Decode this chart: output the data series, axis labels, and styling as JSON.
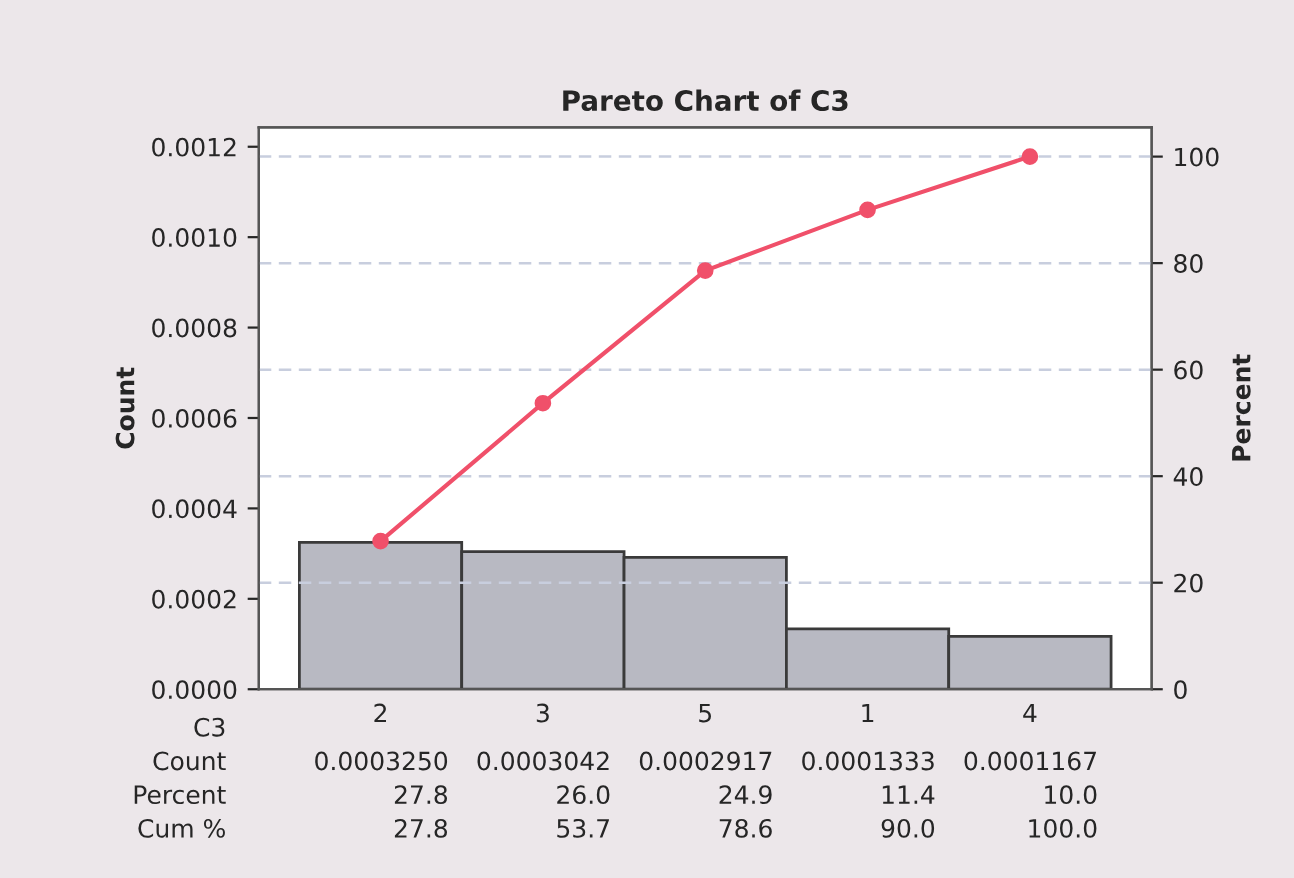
{
  "chart_data": {
    "type": "bar",
    "title": "Pareto Chart of C3",
    "xlabel": "C3",
    "ylabel": "Count",
    "y2label": "Percent",
    "categories": [
      "2",
      "3",
      "5",
      "1",
      "4"
    ],
    "series": [
      {
        "color": "#b8b9c2",
        "values": [
          0.000325,
          0.0003042,
          0.0002917,
          0.0001333,
          0.0001167
        ],
        "value_labels": [
          "0.0003250",
          "0.0003042",
          "0.0002917",
          "0.0001333",
          "0.0001167"
        ]
      },
      {
        "type": "line",
        "axis": "y2",
        "color": "#f0506a",
        "values": [
          27.8,
          53.7,
          78.6,
          90.0,
          100.0
        ],
        "value_labels": [
          "27.8",
          "53.7",
          "78.6",
          "90.0",
          "100.0"
        ]
      }
    ],
    "annotations": [
      "Count",
      "Percent",
      "Cum %",
      "27.8",
      "26.0",
      "24.9",
      "11.4",
      "10.0"
    ],
    "ylim": [
      0,
      0.001243
    ],
    "yticks": [
      {
        "value": 0,
        "label": "0.0000"
      },
      {
        "value": 0.0002,
        "label": "0.0002"
      },
      {
        "value": 0.0004,
        "label": "0.0004"
      },
      {
        "value": 0.0006,
        "label": "0.0006"
      },
      {
        "value": 0.0008,
        "label": "0.0008"
      },
      {
        "value": 0.001,
        "label": "0.0010"
      },
      {
        "value": 0.0012,
        "label": "0.0012"
      }
    ],
    "y2lim": [
      0,
      105.5
    ],
    "y2ticks": [
      0,
      20,
      40,
      60,
      80,
      100
    ],
    "grid": "y2",
    "marker": "circle",
    "line_style": "solid",
    "legend": false
  }
}
